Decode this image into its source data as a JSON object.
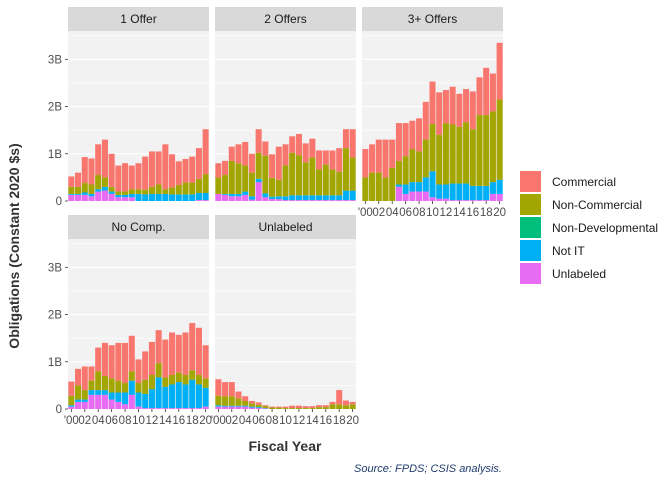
{
  "chart_data": {
    "type": "bar",
    "stacked": true,
    "facet_order": [
      "1 Offer",
      "2 Offers",
      "3+ Offers",
      "No Comp.",
      "Unlabeled"
    ],
    "xlabel": "Fiscal Year",
    "ylabel": "Obligations (Constant 2020 $s)",
    "ylim": [
      0,
      3.6
    ],
    "y_ticks": [
      0,
      1,
      2,
      3
    ],
    "y_tick_labels": [
      "0",
      "1B",
      "2B",
      "3B"
    ],
    "x_years": [
      2000,
      2001,
      2002,
      2003,
      2004,
      2005,
      2006,
      2007,
      2008,
      2009,
      2010,
      2011,
      2012,
      2013,
      2014,
      2015,
      2016,
      2017,
      2018,
      2019,
      2020
    ],
    "x_tick_years": [
      2000,
      2002,
      2004,
      2006,
      2008,
      2010,
      2012,
      2014,
      2016,
      2018,
      2020
    ],
    "x_tick_labels": [
      "'00",
      "02",
      "04",
      "06",
      "08",
      "10",
      "12",
      "14",
      "16",
      "18",
      "20"
    ],
    "grid": true,
    "legend_position": "right",
    "caption": "Source: FPDS; CSIS analysis.",
    "series": [
      {
        "name": "Commercial",
        "color": "#F8766D"
      },
      {
        "name": "Non-Commercial",
        "color": "#A3A500"
      },
      {
        "name": "Non-Developmental",
        "color": "#00BF7D"
      },
      {
        "name": "Not IT",
        "color": "#00B0F6"
      },
      {
        "name": "Unlabeled",
        "color": "#E76BF3"
      }
    ],
    "stack_order_bottom_to_top": [
      "Unlabeled",
      "Not IT",
      "Non-Developmental",
      "Non-Commercial",
      "Commercial"
    ],
    "panels": [
      {
        "facet": "1 Offer",
        "values": {
          "Commercial": [
            0.22,
            0.3,
            0.55,
            0.55,
            0.65,
            0.8,
            0.7,
            0.55,
            0.6,
            0.5,
            0.55,
            0.7,
            0.75,
            0.7,
            0.95,
            0.7,
            0.5,
            0.5,
            0.55,
            0.65,
            0.95
          ],
          "Non-Commercial": [
            0.15,
            0.15,
            0.2,
            0.2,
            0.3,
            0.2,
            0.1,
            0.07,
            0.07,
            0.1,
            0.1,
            0.1,
            0.15,
            0.2,
            0.1,
            0.15,
            0.2,
            0.25,
            0.25,
            0.3,
            0.4
          ],
          "Non-Developmental": [
            0,
            0,
            0,
            0,
            0,
            0,
            0,
            0,
            0,
            0,
            0,
            0,
            0,
            0,
            0,
            0,
            0,
            0,
            0,
            0,
            0
          ],
          "Not IT": [
            0.02,
            0.02,
            0.05,
            0.05,
            0.05,
            0.08,
            0.05,
            0.05,
            0.05,
            0.07,
            0.15,
            0.14,
            0.15,
            0.15,
            0.15,
            0.14,
            0.14,
            0.14,
            0.14,
            0.15,
            0.15
          ],
          "Unlabeled": [
            0.13,
            0.13,
            0.13,
            0.1,
            0.2,
            0.22,
            0.15,
            0.08,
            0.08,
            0.08,
            0,
            0,
            0,
            0,
            0,
            0,
            0,
            0,
            0,
            0.02,
            0.02
          ]
        }
      },
      {
        "facet": "2 Offers",
        "values": {
          "Commercial": [
            0.3,
            0.3,
            0.3,
            0.4,
            0.5,
            0.4,
            0.5,
            0.3,
            0.5,
            0.7,
            0.45,
            0.35,
            0.45,
            0.4,
            0.4,
            0.4,
            0.3,
            0.4,
            0.5,
            0.4,
            0.6
          ],
          "Non-Commercial": [
            0.35,
            0.4,
            0.7,
            0.65,
            0.55,
            0.5,
            0.55,
            0.8,
            0.4,
            0.35,
            0.65,
            0.9,
            0.85,
            0.7,
            0.8,
            0.55,
            0.65,
            0.55,
            0.5,
            0.9,
            0.7
          ],
          "Non-Developmental": [
            0,
            0,
            0,
            0,
            0,
            0,
            0,
            0,
            0,
            0,
            0,
            0,
            0,
            0,
            0,
            0,
            0,
            0,
            0,
            0,
            0
          ],
          "Not IT": [
            0,
            0.02,
            0.05,
            0.05,
            0.07,
            0.07,
            0.07,
            0.08,
            0.05,
            0.06,
            0.08,
            0.1,
            0.1,
            0.1,
            0.1,
            0.1,
            0.1,
            0.1,
            0.1,
            0.2,
            0.2
          ],
          "Unlabeled": [
            0.15,
            0.13,
            0.1,
            0.1,
            0.13,
            0.03,
            0.4,
            0.08,
            0.04,
            0.04,
            0.02,
            0.02,
            0.02,
            0.02,
            0.02,
            0.02,
            0.02,
            0.02,
            0.02,
            0.02,
            0.02
          ]
        }
      },
      {
        "facet": "3+ Offers",
        "values": {
          "Commercial": [
            0.6,
            0.6,
            0.7,
            0.8,
            0.6,
            0.8,
            0.7,
            0.6,
            0.7,
            0.8,
            0.9,
            0.9,
            0.7,
            0.8,
            0.7,
            0.7,
            0.8,
            0.8,
            1.0,
            0.8,
            1.2
          ],
          "Non-Commercial": [
            0.5,
            0.6,
            0.6,
            0.5,
            0.7,
            0.5,
            0.6,
            0.7,
            0.65,
            0.8,
            1.0,
            1.05,
            1.3,
            1.25,
            1.2,
            1.3,
            1.2,
            1.5,
            1.5,
            1.5,
            1.7
          ],
          "Non-Developmental": [
            0,
            0,
            0,
            0,
            0,
            0,
            0,
            0,
            0,
            0,
            0,
            0,
            0,
            0,
            0,
            0,
            0,
            0,
            0,
            0,
            0
          ],
          "Not IT": [
            0,
            0,
            0,
            0,
            0,
            0.05,
            0.2,
            0.2,
            0.2,
            0.3,
            0.55,
            0.3,
            0.3,
            0.35,
            0.35,
            0.35,
            0.3,
            0.3,
            0.3,
            0.25,
            0.3
          ],
          "Unlabeled": [
            0,
            0,
            0,
            0,
            0,
            0.3,
            0.15,
            0.2,
            0.2,
            0.2,
            0.08,
            0.05,
            0.05,
            0.02,
            0.02,
            0.02,
            0.02,
            0.02,
            0.02,
            0.15,
            0.15
          ]
        }
      },
      {
        "facet": "No Comp.",
        "values": {
          "Commercial": [
            0.3,
            0.35,
            0.5,
            0.3,
            0.5,
            0.7,
            0.7,
            0.8,
            0.85,
            0.75,
            0.5,
            0.6,
            0.7,
            0.7,
            0.8,
            0.9,
            0.8,
            0.9,
            1.0,
            1.0,
            0.7
          ],
          "Non-Commercial": [
            0.2,
            0.3,
            0.2,
            0.2,
            0.4,
            0.3,
            0.3,
            0.25,
            0.2,
            0.2,
            0.2,
            0.3,
            0.3,
            0.3,
            0.2,
            0.2,
            0.2,
            0.2,
            0.2,
            0.2,
            0.2
          ],
          "Non-Developmental": [
            0,
            0,
            0,
            0,
            0,
            0,
            0,
            0,
            0,
            0,
            0,
            0,
            0,
            0,
            0,
            0,
            0,
            0,
            0,
            0,
            0
          ],
          "Not IT": [
            0.03,
            0.05,
            0.05,
            0.1,
            0.1,
            0.1,
            0.15,
            0.2,
            0.25,
            0.3,
            0.3,
            0.3,
            0.4,
            0.65,
            0.45,
            0.5,
            0.55,
            0.5,
            0.6,
            0.5,
            0.4
          ],
          "Unlabeled": [
            0.05,
            0.15,
            0.15,
            0.3,
            0.3,
            0.3,
            0.2,
            0.15,
            0.1,
            0.3,
            0.05,
            0.02,
            0.02,
            0.02,
            0.02,
            0.02,
            0.02,
            0.02,
            0.02,
            0.02,
            0.05
          ]
        }
      },
      {
        "facet": "Unlabeled",
        "values": {
          "Commercial": [
            0.35,
            0.3,
            0.3,
            0.15,
            0.1,
            0.05,
            0.05,
            0.02,
            0.02,
            0.02,
            0.03,
            0.05,
            0.05,
            0.04,
            0.04,
            0.04,
            0.04,
            0.05,
            0.3,
            0.1,
            0.05
          ],
          "Non-Commercial": [
            0.2,
            0.2,
            0.2,
            0.15,
            0.1,
            0.07,
            0.05,
            0.04,
            0.03,
            0.03,
            0.02,
            0.02,
            0.02,
            0.02,
            0.02,
            0.04,
            0.04,
            0.1,
            0.1,
            0.08,
            0.1
          ],
          "Non-Developmental": [
            0,
            0,
            0,
            0,
            0,
            0,
            0,
            0,
            0,
            0,
            0,
            0,
            0,
            0,
            0,
            0,
            0,
            0,
            0,
            0,
            0
          ],
          "Not IT": [
            0.03,
            0.02,
            0.02,
            0.02,
            0.02,
            0.02,
            0.02,
            0.01,
            0,
            0,
            0,
            0,
            0,
            0,
            0,
            0,
            0,
            0,
            0,
            0,
            0
          ],
          "Unlabeled": [
            0.05,
            0.05,
            0.05,
            0.05,
            0.05,
            0.03,
            0.02,
            0.01,
            0,
            0,
            0,
            0,
            0,
            0,
            0,
            0,
            0,
            0,
            0,
            0,
            0
          ]
        }
      }
    ]
  }
}
